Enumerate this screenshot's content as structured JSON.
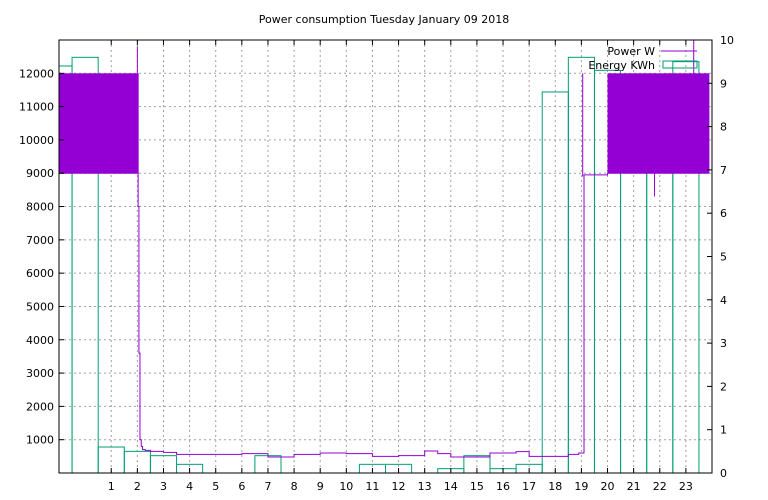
{
  "chart_data": {
    "type": "bar",
    "title": "Power consumption Tuesday January 09 2018",
    "grid": true,
    "legend_position": "top-right",
    "xlim": [
      -1,
      24
    ],
    "ylim_left": [
      0,
      13000
    ],
    "ylim_right": [
      0,
      10
    ],
    "x_ticks": [
      1,
      2,
      3,
      4,
      5,
      6,
      7,
      8,
      9,
      10,
      11,
      12,
      13,
      14,
      15,
      16,
      17,
      18,
      19,
      20,
      21,
      22,
      23
    ],
    "y_ticks_left": [
      1000,
      2000,
      3000,
      4000,
      5000,
      6000,
      7000,
      8000,
      9000,
      10000,
      11000,
      12000
    ],
    "y_ticks_right": [
      0,
      1,
      2,
      3,
      4,
      5,
      6,
      7,
      8,
      9,
      10
    ],
    "colors": {
      "power": "#9400d3",
      "energy": "#009e73"
    },
    "series": [
      {
        "name": "Energy KWh",
        "axis": "right",
        "style": "bars",
        "x": [
          -1,
          0,
          1,
          2,
          3,
          4,
          5,
          6,
          7,
          8,
          9,
          10,
          11,
          12,
          13,
          14,
          15,
          16,
          17,
          18,
          19,
          20,
          21,
          22,
          23
        ],
        "values": [
          9.4,
          9.6,
          0.6,
          0.5,
          0.4,
          0.2,
          0.0,
          0.0,
          0.4,
          0.0,
          0.0,
          0.0,
          0.2,
          0.2,
          0.0,
          0.1,
          0.4,
          0.1,
          0.2,
          8.8,
          9.6,
          9.3,
          9.2,
          8.9,
          9.5
        ]
      },
      {
        "name": "Power W",
        "axis": "left",
        "style": "line",
        "bands": [
          {
            "from": -1.0,
            "to": 2.05,
            "low": 9000,
            "high": 12000
          },
          {
            "from": 20.0,
            "to": 23.9,
            "low": 9000,
            "high": 12000
          }
        ],
        "x": [
          -1.0,
          2.0,
          2.03,
          2.06,
          2.1,
          2.15,
          2.2,
          2.3,
          2.5,
          3.0,
          3.5,
          4.0,
          5.0,
          6.0,
          7.0,
          8.0,
          9.0,
          10.0,
          11.0,
          12.0,
          13.0,
          13.5,
          14.0,
          14.5,
          15.0,
          15.5,
          16.0,
          16.5,
          17.0,
          17.5,
          18.0,
          18.5,
          18.9,
          19.0,
          19.1,
          19.2,
          19.5,
          19.8,
          20.0,
          23.9
        ],
        "values": [
          9000,
          9000,
          8000,
          3600,
          1000,
          800,
          700,
          680,
          650,
          620,
          560,
          560,
          560,
          580,
          480,
          560,
          600,
          580,
          500,
          520,
          660,
          580,
          480,
          480,
          480,
          600,
          600,
          640,
          500,
          500,
          500,
          560,
          600,
          600,
          8950,
          8950,
          8950,
          8950,
          9000,
          9000
        ]
      }
    ],
    "legend": [
      {
        "label": "Power W",
        "series": "power"
      },
      {
        "label": "Energy KWh",
        "series": "energy"
      }
    ]
  }
}
